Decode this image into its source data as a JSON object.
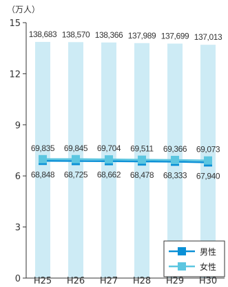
{
  "chart_data": {
    "type": "bar+line",
    "unit_label": "（万人）",
    "categories": [
      "H25",
      "H26",
      "H27",
      "H28",
      "H29",
      "H30"
    ],
    "ylim": [
      0,
      15
    ],
    "yticks": [
      0,
      3,
      6,
      9,
      12,
      15
    ],
    "total": {
      "values": [
        138683,
        138570,
        138366,
        137989,
        137699,
        137013
      ],
      "labels": [
        "138,683",
        "138,570",
        "138,366",
        "137,989",
        "137,699",
        "137,013"
      ],
      "color": "#cdebf5"
    },
    "series": [
      {
        "name": "男性",
        "values": [
          68848,
          68725,
          68662,
          68478,
          68333,
          67940
        ],
        "labels": [
          "68,848",
          "68,725",
          "68,662",
          "68,478",
          "68,333",
          "67,940"
        ],
        "color": "#0a90d6"
      },
      {
        "name": "女性",
        "values": [
          69835,
          69845,
          69704,
          69511,
          69366,
          69073
        ],
        "labels": [
          "69,835",
          "69,845",
          "69,704",
          "69,511",
          "69,366",
          "69,073"
        ],
        "color": "#5cc6e0"
      }
    ],
    "legend_position": "bottom-right"
  }
}
